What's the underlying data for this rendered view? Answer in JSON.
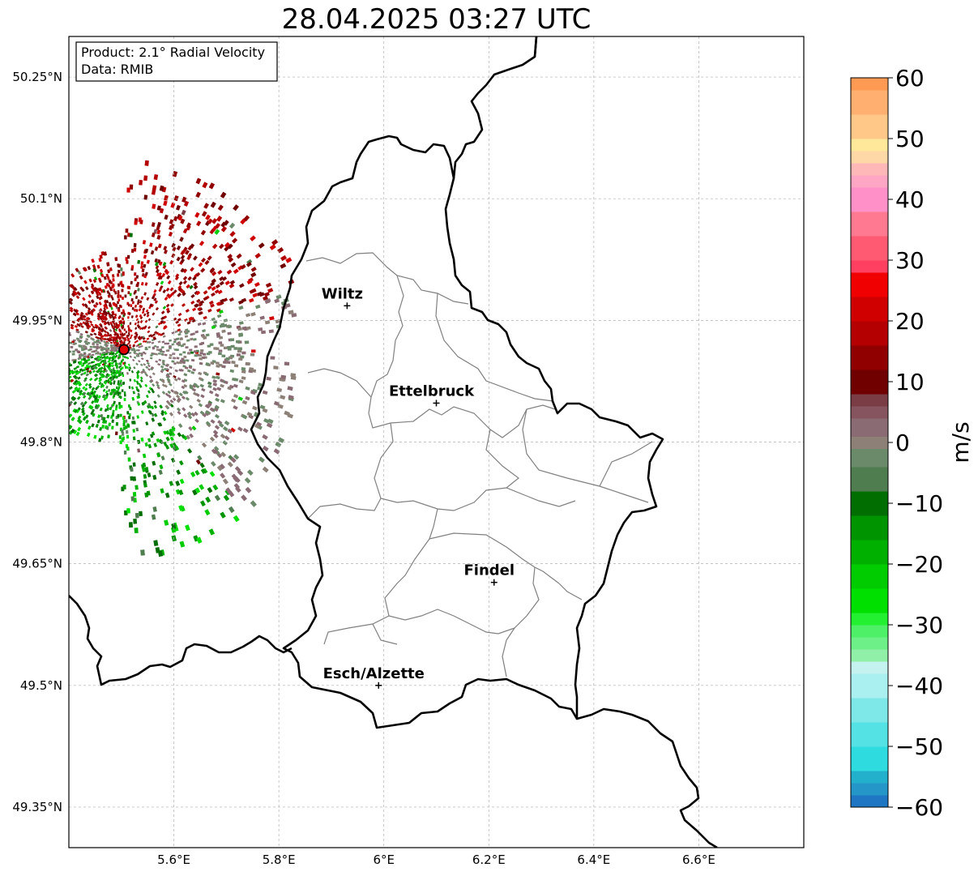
{
  "title": "28.04.2025 03:27 UTC",
  "info_box": {
    "product": "Product: 2.1° Radial Velocity",
    "data": "Data: RMIB"
  },
  "map": {
    "lon_range": [
      5.4,
      6.8
    ],
    "lat_range": [
      49.3,
      50.3
    ],
    "lon_ticks": [
      {
        "value": 5.6,
        "label": "5.6°E"
      },
      {
        "value": 5.8,
        "label": "5.8°E"
      },
      {
        "value": 6.0,
        "label": "6°E"
      },
      {
        "value": 6.2,
        "label": "6.2°E"
      },
      {
        "value": 6.4,
        "label": "6.4°E"
      },
      {
        "value": 6.6,
        "label": "6.6°E"
      }
    ],
    "lat_ticks": [
      {
        "value": 50.25,
        "label": "50.25°N"
      },
      {
        "value": 50.1,
        "label": "50.1°N"
      },
      {
        "value": 49.95,
        "label": "49.95°N"
      },
      {
        "value": 49.8,
        "label": "49.8°N"
      },
      {
        "value": 49.65,
        "label": "49.65°N"
      },
      {
        "value": 49.5,
        "label": "49.5°N"
      },
      {
        "value": 49.35,
        "label": "49.35°N"
      }
    ],
    "grid": true,
    "radar_site": {
      "lon": 5.505,
      "lat": 49.914
    },
    "cities": [
      {
        "name": "Wiltz",
        "lon": 5.93,
        "lat": 49.968
      },
      {
        "name": "Ettelbruck",
        "lon": 6.1,
        "lat": 49.848
      },
      {
        "name": "Findel",
        "lon": 6.21,
        "lat": 49.627
      },
      {
        "name": "Esch/Alzette",
        "lon": 5.99,
        "lat": 49.5
      }
    ]
  },
  "colorbar": {
    "unit": "m/s",
    "min": -60,
    "max": 60,
    "ticks": [
      {
        "value": 60,
        "label": "60"
      },
      {
        "value": 50,
        "label": "50"
      },
      {
        "value": 40,
        "label": "40"
      },
      {
        "value": 30,
        "label": "30"
      },
      {
        "value": 20,
        "label": "20"
      },
      {
        "value": 10,
        "label": "10"
      },
      {
        "value": 0,
        "label": "0"
      },
      {
        "value": -10,
        "label": "−10"
      },
      {
        "value": -20,
        "label": "−20"
      },
      {
        "value": -30,
        "label": "−30"
      },
      {
        "value": -40,
        "label": "−40"
      },
      {
        "value": -50,
        "label": "−50"
      },
      {
        "value": -60,
        "label": "−60"
      }
    ],
    "stops": [
      {
        "from": -60,
        "to": -58,
        "color": "#1f77c4"
      },
      {
        "from": -58,
        "to": -56,
        "color": "#2596c8"
      },
      {
        "from": -56,
        "to": -54,
        "color": "#22b0cc"
      },
      {
        "from": -54,
        "to": -50,
        "color": "#2edce0"
      },
      {
        "from": -50,
        "to": -46,
        "color": "#55e2e4"
      },
      {
        "from": -46,
        "to": -42,
        "color": "#7ee8e8"
      },
      {
        "from": -42,
        "to": -38,
        "color": "#aaf0f0"
      },
      {
        "from": -38,
        "to": -36,
        "color": "#c4f2ee"
      },
      {
        "from": -36,
        "to": -34,
        "color": "#90f0a8"
      },
      {
        "from": -34,
        "to": -32,
        "color": "#6ef088"
      },
      {
        "from": -32,
        "to": -30,
        "color": "#4df066"
      },
      {
        "from": -30,
        "to": -28,
        "color": "#22f030"
      },
      {
        "from": -28,
        "to": -24,
        "color": "#00e000"
      },
      {
        "from": -24,
        "to": -20,
        "color": "#00cc00"
      },
      {
        "from": -20,
        "to": -16,
        "color": "#00b000"
      },
      {
        "from": -16,
        "to": -12,
        "color": "#009400"
      },
      {
        "from": -12,
        "to": -8,
        "color": "#006e00"
      },
      {
        "from": -8,
        "to": -4,
        "color": "#4f7d4f"
      },
      {
        "from": -4,
        "to": -1,
        "color": "#6a8a6a"
      },
      {
        "from": -1,
        "to": 1,
        "color": "#8c8077"
      },
      {
        "from": 1,
        "to": 4,
        "color": "#8a6b74"
      },
      {
        "from": 4,
        "to": 6,
        "color": "#85545e"
      },
      {
        "from": 6,
        "to": 8,
        "color": "#7a3d45"
      },
      {
        "from": 8,
        "to": 12,
        "color": "#700000"
      },
      {
        "from": 12,
        "to": 16,
        "color": "#900000"
      },
      {
        "from": 16,
        "to": 20,
        "color": "#b40000"
      },
      {
        "from": 20,
        "to": 24,
        "color": "#d00000"
      },
      {
        "from": 24,
        "to": 28,
        "color": "#f00000"
      },
      {
        "from": 28,
        "to": 30,
        "color": "#ff4060"
      },
      {
        "from": 30,
        "to": 34,
        "color": "#ff5a72"
      },
      {
        "from": 34,
        "to": 38,
        "color": "#ff7a90"
      },
      {
        "from": 38,
        "to": 42,
        "color": "#ff90c8"
      },
      {
        "from": 42,
        "to": 44,
        "color": "#ffa6c4"
      },
      {
        "from": 44,
        "to": 46,
        "color": "#ffb8b8"
      },
      {
        "from": 46,
        "to": 48,
        "color": "#ffd8a8"
      },
      {
        "from": 48,
        "to": 50,
        "color": "#ffe89a"
      },
      {
        "from": 50,
        "to": 54,
        "color": "#ffc888"
      },
      {
        "from": 54,
        "to": 58,
        "color": "#ffb070"
      },
      {
        "from": 58,
        "to": 60,
        "color": "#ff9a55"
      }
    ]
  }
}
